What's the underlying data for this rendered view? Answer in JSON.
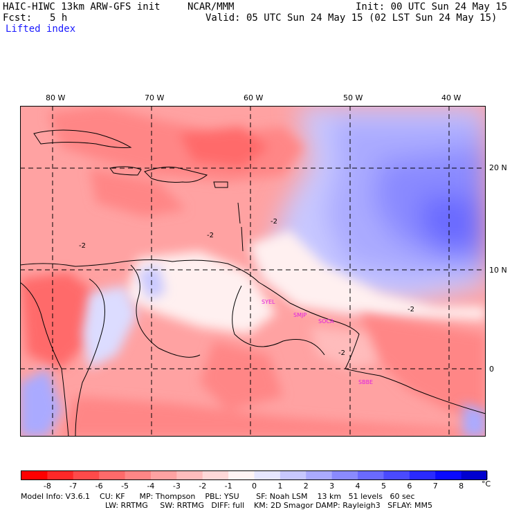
{
  "header": {
    "model_title": "HAIC-HIWC 13km ARW-GFS init",
    "org": "NCAR/MMM",
    "init_text": "Init: 00 UTC Sun 24 May 15",
    "fcst_label": "Fcst:",
    "fcst_value": "5 h",
    "valid_text": "Valid: 05 UTC Sun 24 May 15 (02 LST Sun 24 May 15)",
    "field_name": "Lifted index"
  },
  "map": {
    "longitude_labels": [
      "80 W",
      "70 W",
      "60 W",
      "50 W",
      "40 W"
    ],
    "latitude_labels": [
      "20 N",
      "10 N",
      "0"
    ],
    "contour_labels": [
      "-2",
      "-2",
      "-2",
      "-2",
      "-2"
    ],
    "stations": [
      "SYEL",
      "SMJP",
      "SOCA",
      "SBBE"
    ]
  },
  "colorbar": {
    "labels": [
      "-8",
      "-7",
      "-6",
      "-5",
      "-4",
      "-3",
      "-2",
      "-1",
      "0",
      "1",
      "2",
      "3",
      "4",
      "5",
      "6",
      "7",
      "8"
    ],
    "unit": "°C",
    "colors": [
      "#ff0000",
      "#ff2828",
      "#ff4a4a",
      "#ff6a6a",
      "#ff8686",
      "#ffa2a2",
      "#ffbcbc",
      "#ffd8d8",
      "#fff4f4",
      "#e6e6ff",
      "#c8c8ff",
      "#aaaaff",
      "#8a8aff",
      "#6a6aff",
      "#4a4aff",
      "#2a2aff",
      "#0a0aff",
      "#0000d0"
    ]
  },
  "model_info": {
    "line1": "Model Info: V3.6.1    CU: KF      MP: Thompson    PBL: YSU       SF: Noah LSM    13 km   51 levels   60 sec",
    "line2": "LW: RRTMG     SW: RRTMG   DIFF: full    KM: 2D Smagor DAMP: Rayleigh3   SFLAY: MM5"
  }
}
